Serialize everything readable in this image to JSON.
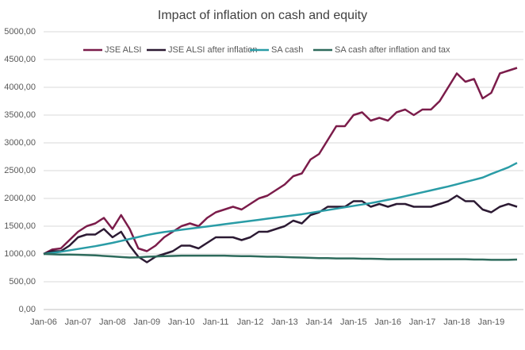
{
  "chart_data": {
    "type": "line",
    "title": "Impact of inflation on cash and equity",
    "categories": [
      "Jan-06",
      null,
      null,
      null,
      "Jan-07",
      null,
      null,
      null,
      "Jan-08",
      null,
      null,
      null,
      "Jan-09",
      null,
      null,
      null,
      "Jan-10",
      null,
      null,
      null,
      "Jan-11",
      null,
      null,
      null,
      "Jan-12",
      null,
      null,
      null,
      "Jan-13",
      null,
      null,
      null,
      "Jan-14",
      null,
      null,
      null,
      "Jan-15",
      null,
      null,
      null,
      "Jan-16",
      null,
      null,
      null,
      "Jan-17",
      null,
      null,
      null,
      "Jan-18",
      null,
      null,
      null,
      "Jan-19",
      null,
      null,
      null
    ],
    "series": [
      {
        "name": "JSE ALSI",
        "color": "#7b1c4a",
        "values": [
          1000,
          1080,
          1100,
          1250,
          1400,
          1500,
          1550,
          1650,
          1450,
          1700,
          1450,
          1100,
          1050,
          1150,
          1300,
          1400,
          1500,
          1550,
          1500,
          1650,
          1750,
          1800,
          1850,
          1800,
          1900,
          2000,
          2050,
          2150,
          2250,
          2400,
          2450,
          2700,
          2800,
          3050,
          3300,
          3300,
          3500,
          3550,
          3400,
          3450,
          3400,
          3550,
          3600,
          3500,
          3600,
          3600,
          3750,
          4000,
          4250,
          4100,
          4150,
          3800,
          3900,
          4250,
          4300,
          4350
        ]
      },
      {
        "name": "JSE ALSI after inflation",
        "color": "#2c1a33",
        "values": [
          1000,
          1050,
          1050,
          1150,
          1300,
          1350,
          1350,
          1450,
          1300,
          1400,
          1150,
          950,
          850,
          950,
          1000,
          1050,
          1150,
          1150,
          1100,
          1200,
          1300,
          1300,
          1300,
          1250,
          1300,
          1400,
          1400,
          1450,
          1500,
          1600,
          1550,
          1700,
          1750,
          1850,
          1850,
          1850,
          1950,
          1950,
          1850,
          1900,
          1850,
          1900,
          1900,
          1850,
          1850,
          1850,
          1900,
          1950,
          2050,
          1950,
          1950,
          1800,
          1750,
          1850,
          1900,
          1850
        ]
      },
      {
        "name": "SA cash",
        "color": "#2a9ca6",
        "values": [
          1000,
          1020,
          1040,
          1065,
          1090,
          1115,
          1140,
          1170,
          1200,
          1235,
          1270,
          1305,
          1340,
          1370,
          1395,
          1415,
          1435,
          1455,
          1475,
          1495,
          1515,
          1535,
          1555,
          1575,
          1595,
          1615,
          1635,
          1655,
          1675,
          1695,
          1715,
          1740,
          1765,
          1790,
          1815,
          1840,
          1865,
          1890,
          1915,
          1945,
          1975,
          2005,
          2040,
          2075,
          2110,
          2145,
          2180,
          2215,
          2255,
          2295,
          2335,
          2375,
          2440,
          2500,
          2560,
          2640
        ]
      },
      {
        "name": "SA cash after inflation and tax",
        "color": "#2e6b5c",
        "values": [
          1000,
          995,
          990,
          990,
          985,
          980,
          975,
          965,
          955,
          945,
          935,
          940,
          950,
          955,
          960,
          965,
          970,
          970,
          970,
          970,
          970,
          970,
          965,
          960,
          960,
          955,
          950,
          950,
          945,
          940,
          935,
          930,
          925,
          925,
          920,
          920,
          920,
          915,
          915,
          910,
          905,
          905,
          905,
          905,
          905,
          905,
          905,
          905,
          905,
          905,
          900,
          900,
          895,
          895,
          895,
          900
        ]
      }
    ],
    "ylim": [
      0,
      5000
    ],
    "yticks": [
      {
        "value": 0,
        "label": "0,00"
      },
      {
        "value": 500,
        "label": "500,00"
      },
      {
        "value": 1000,
        "label": "1000,00"
      },
      {
        "value": 1500,
        "label": "1500,00"
      },
      {
        "value": 2000,
        "label": "2000,00"
      },
      {
        "value": 2500,
        "label": "2500,00"
      },
      {
        "value": 3000,
        "label": "3000,00"
      },
      {
        "value": 3500,
        "label": "3500,00"
      },
      {
        "value": 4000,
        "label": "4000,00"
      },
      {
        "value": 4500,
        "label": "4500,00"
      },
      {
        "value": 5000,
        "label": "5000,00"
      }
    ],
    "grid": true,
    "legend": "top"
  }
}
